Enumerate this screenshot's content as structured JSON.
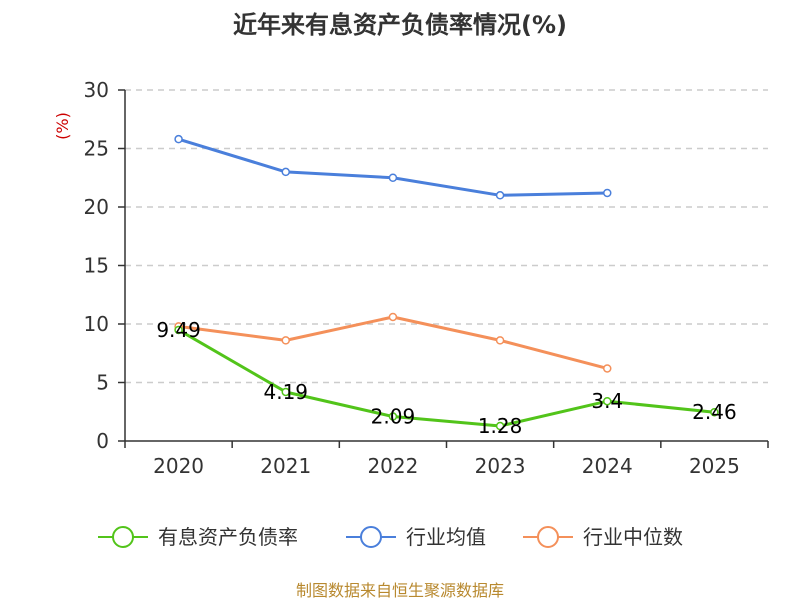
{
  "chart_data": {
    "type": "line",
    "title": "近年来有息资产负债率情况(%)",
    "ylabel": "(%)",
    "xlabel": "",
    "categories": [
      "2020",
      "2021",
      "2022",
      "2023",
      "2024",
      "2025"
    ],
    "ylim": [
      0,
      30
    ],
    "yticks": [
      0,
      5,
      10,
      15,
      20,
      25,
      30
    ],
    "grid": true,
    "legend_position": "bottom",
    "series": [
      {
        "name": "有息资产负债率",
        "color": "#52c41a",
        "values": [
          9.49,
          4.19,
          2.09,
          1.28,
          3.4,
          2.46
        ],
        "labels": [
          "9.49",
          "4.19",
          "2.09",
          "1.28",
          "3.4",
          "2.46"
        ]
      },
      {
        "name": "行业均值",
        "color": "#4a7fdb",
        "values": [
          25.8,
          23.0,
          22.5,
          21.0,
          21.2,
          null
        ]
      },
      {
        "name": "行业中位数",
        "color": "#f4905a",
        "values": [
          9.8,
          8.6,
          10.6,
          8.6,
          6.2,
          null
        ]
      }
    ],
    "source": "制图数据来自恒生聚源数据库"
  }
}
